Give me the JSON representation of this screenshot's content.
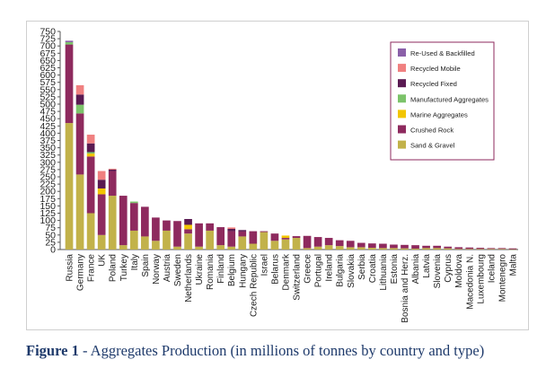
{
  "chart_data": {
    "type": "bar",
    "stacked": true,
    "title": "",
    "xlabel": "",
    "ylabel": "",
    "ylim": [
      0,
      750
    ],
    "yticks": [
      0,
      25,
      50,
      75,
      100,
      125,
      150,
      175,
      200,
      225,
      250,
      275,
      300,
      325,
      350,
      375,
      400,
      425,
      450,
      475,
      500,
      525,
      550,
      575,
      600,
      625,
      650,
      675,
      700,
      725,
      750
    ],
    "grid": false,
    "legend_position": "top-right",
    "categories": [
      "Russia",
      "Germany",
      "France",
      "UK",
      "Poland",
      "Turkey",
      "Italy",
      "Spain",
      "Norway",
      "Austria",
      "Sweden",
      "Netherlands",
      "Ukraine",
      "Romania",
      "Finland",
      "Belgium",
      "Hungary",
      "Czech Republic",
      "Israel",
      "Belarus",
      "Denmark",
      "Switzerland",
      "Greece",
      "Portugal",
      "Ireland",
      "Bulgaria",
      "Slovakia",
      "Serbia",
      "Croatia",
      "Lithuania",
      "Estonia",
      "Bosnia and Herz.",
      "Albania",
      "Latvia",
      "Slovenia",
      "Cyprus",
      "Moldova",
      "Macedonia N.",
      "Luxembourg",
      "Iceland",
      "Montenegro",
      "Malta"
    ],
    "series": [
      {
        "name": "Sand & Gravel",
        "color": "#c2b24a",
        "values": [
          435,
          258,
          125,
          50,
          185,
          15,
          65,
          45,
          30,
          65,
          10,
          55,
          10,
          65,
          15,
          10,
          45,
          20,
          60,
          30,
          35,
          40,
          5,
          10,
          15,
          12,
          8,
          8,
          6,
          5,
          5,
          4,
          3,
          5,
          5,
          4,
          2,
          2,
          2,
          2,
          2,
          1
        ]
      },
      {
        "name": "Crushed Rock",
        "color": "#8e2a5e",
        "values": [
          270,
          210,
          195,
          140,
          85,
          170,
          95,
          102,
          80,
          35,
          88,
          15,
          80,
          25,
          62,
          53,
          17,
          43,
          3,
          25,
          5,
          6,
          42,
          33,
          25,
          20,
          22,
          15,
          15,
          15,
          12,
          12,
          12,
          8,
          8,
          6,
          6,
          5,
          4,
          3,
          3,
          3
        ]
      },
      {
        "name": "Marine Aggregates",
        "color": "#f2c500",
        "values": [
          0,
          0,
          10,
          20,
          0,
          0,
          0,
          0,
          0,
          0,
          0,
          15,
          0,
          0,
          0,
          0,
          0,
          0,
          0,
          0,
          8,
          0,
          0,
          0,
          0,
          0,
          0,
          0,
          0,
          0,
          0,
          0,
          0,
          0,
          0,
          0,
          0,
          0,
          0,
          0,
          0,
          0
        ]
      },
      {
        "name": "Manufactured Aggregates",
        "color": "#7cc36a",
        "values": [
          8,
          30,
          5,
          0,
          0,
          0,
          5,
          0,
          0,
          0,
          0,
          0,
          0,
          0,
          0,
          0,
          0,
          0,
          0,
          0,
          0,
          0,
          0,
          0,
          0,
          0,
          0,
          0,
          0,
          0,
          0,
          0,
          0,
          0,
          0,
          0,
          0,
          0,
          0,
          0,
          0,
          0
        ]
      },
      {
        "name": "Recycled Fixed",
        "color": "#5a1a52",
        "values": [
          0,
          35,
          30,
          30,
          5,
          0,
          0,
          0,
          0,
          0,
          0,
          20,
          0,
          0,
          0,
          8,
          5,
          0,
          0,
          0,
          0,
          0,
          0,
          0,
          0,
          0,
          0,
          0,
          0,
          0,
          0,
          0,
          0,
          0,
          0,
          0,
          0,
          0,
          0,
          0,
          0,
          0
        ]
      },
      {
        "name": "Recycled Mobile",
        "color": "#f08080",
        "values": [
          0,
          32,
          30,
          30,
          3,
          0,
          0,
          0,
          0,
          0,
          0,
          0,
          0,
          0,
          0,
          5,
          0,
          0,
          0,
          0,
          0,
          0,
          0,
          0,
          0,
          0,
          0,
          0,
          0,
          0,
          0,
          0,
          0,
          0,
          0,
          0,
          0,
          0,
          0,
          0,
          0,
          0
        ]
      },
      {
        "name": "Re-Used & Backfilled",
        "color": "#8a60a8",
        "values": [
          5,
          0,
          0,
          0,
          0,
          0,
          0,
          0,
          0,
          0,
          0,
          0,
          0,
          0,
          0,
          0,
          0,
          0,
          0,
          0,
          0,
          0,
          0,
          0,
          0,
          0,
          0,
          0,
          0,
          0,
          0,
          0,
          0,
          0,
          0,
          0,
          0,
          0,
          0,
          0,
          0,
          0
        ]
      }
    ],
    "legend_order": [
      "Re-Used & Backfilled",
      "Recycled Mobile",
      "Recycled Fixed",
      "Manufactured Aggregates",
      "Marine Aggregates",
      "Crushed Rock",
      "Sand & Gravel"
    ]
  },
  "caption": {
    "figure_number": "Figure 1",
    "text": " - Aggregates Production (in millions of tonnes by country and type)"
  },
  "colors": {
    "caption": "#1e3a6b",
    "legend_border": "#8e2a5e",
    "axis": "#555555",
    "text": "#222222"
  }
}
